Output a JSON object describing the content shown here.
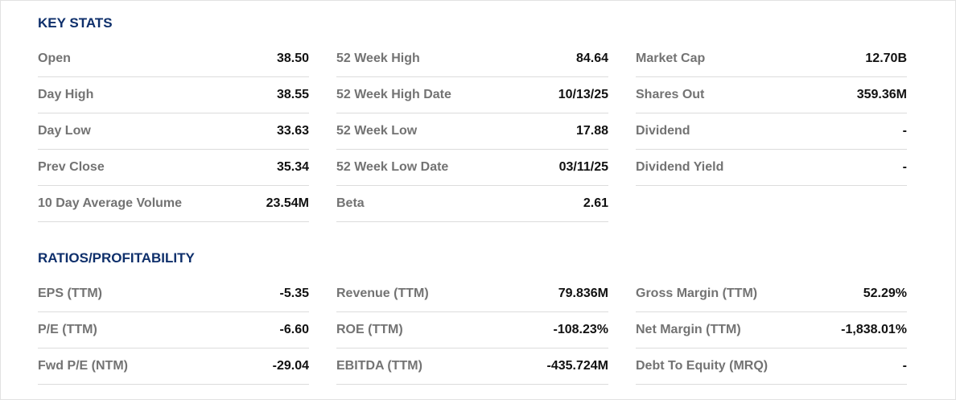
{
  "sections": [
    {
      "title": "KEY STATS",
      "columns": [
        [
          {
            "label": "Open",
            "value": "38.50"
          },
          {
            "label": "Day High",
            "value": "38.55"
          },
          {
            "label": "Day Low",
            "value": "33.63"
          },
          {
            "label": "Prev Close",
            "value": "35.34"
          },
          {
            "label": "10 Day Average Volume",
            "value": "23.54M"
          }
        ],
        [
          {
            "label": "52 Week High",
            "value": "84.64"
          },
          {
            "label": "52 Week High Date",
            "value": "10/13/25"
          },
          {
            "label": "52 Week Low",
            "value": "17.88"
          },
          {
            "label": "52 Week Low Date",
            "value": "03/11/25"
          },
          {
            "label": "Beta",
            "value": "2.61"
          }
        ],
        [
          {
            "label": "Market Cap",
            "value": "12.70B"
          },
          {
            "label": "Shares Out",
            "value": "359.36M"
          },
          {
            "label": "Dividend",
            "value": "-"
          },
          {
            "label": "Dividend Yield",
            "value": "-"
          }
        ]
      ]
    },
    {
      "title": "RATIOS/PROFITABILITY",
      "columns": [
        [
          {
            "label": "EPS (TTM)",
            "value": "-5.35"
          },
          {
            "label": "P/E (TTM)",
            "value": "-6.60"
          },
          {
            "label": "Fwd P/E (NTM)",
            "value": "-29.04"
          }
        ],
        [
          {
            "label": "Revenue (TTM)",
            "value": "79.836M"
          },
          {
            "label": "ROE (TTM)",
            "value": "-108.23%"
          },
          {
            "label": "EBITDA (TTM)",
            "value": "-435.724M"
          }
        ],
        [
          {
            "label": "Gross Margin (TTM)",
            "value": "52.29%"
          },
          {
            "label": "Net Margin (TTM)",
            "value": "-1,838.01%"
          },
          {
            "label": "Debt To Equity (MRQ)",
            "value": "-"
          }
        ]
      ]
    }
  ]
}
